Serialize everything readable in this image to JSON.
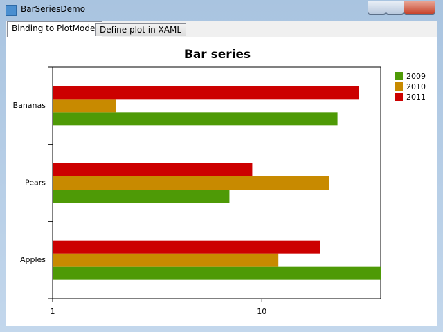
{
  "window": {
    "title": "BarSeriesDemo"
  },
  "tabs": [
    {
      "label": "Binding to PlotModel",
      "selected": true
    },
    {
      "label": "Define plot in XAML",
      "selected": false
    }
  ],
  "chart_data": {
    "type": "bar",
    "orientation": "horizontal",
    "title": "Bar series",
    "categories": [
      "Apples",
      "Pears",
      "Bananas"
    ],
    "series": [
      {
        "name": "2009",
        "color": "#4e9a06",
        "values": [
          37,
          7,
          23
        ]
      },
      {
        "name": "2010",
        "color": "#c88a00",
        "values": [
          12,
          21,
          2
        ]
      },
      {
        "name": "2011",
        "color": "#cc0000",
        "values": [
          19,
          9,
          29
        ]
      }
    ],
    "xlim": [
      1,
      37
    ],
    "xticks": [
      1,
      10
    ],
    "log_x": true,
    "legend": "top-right"
  }
}
